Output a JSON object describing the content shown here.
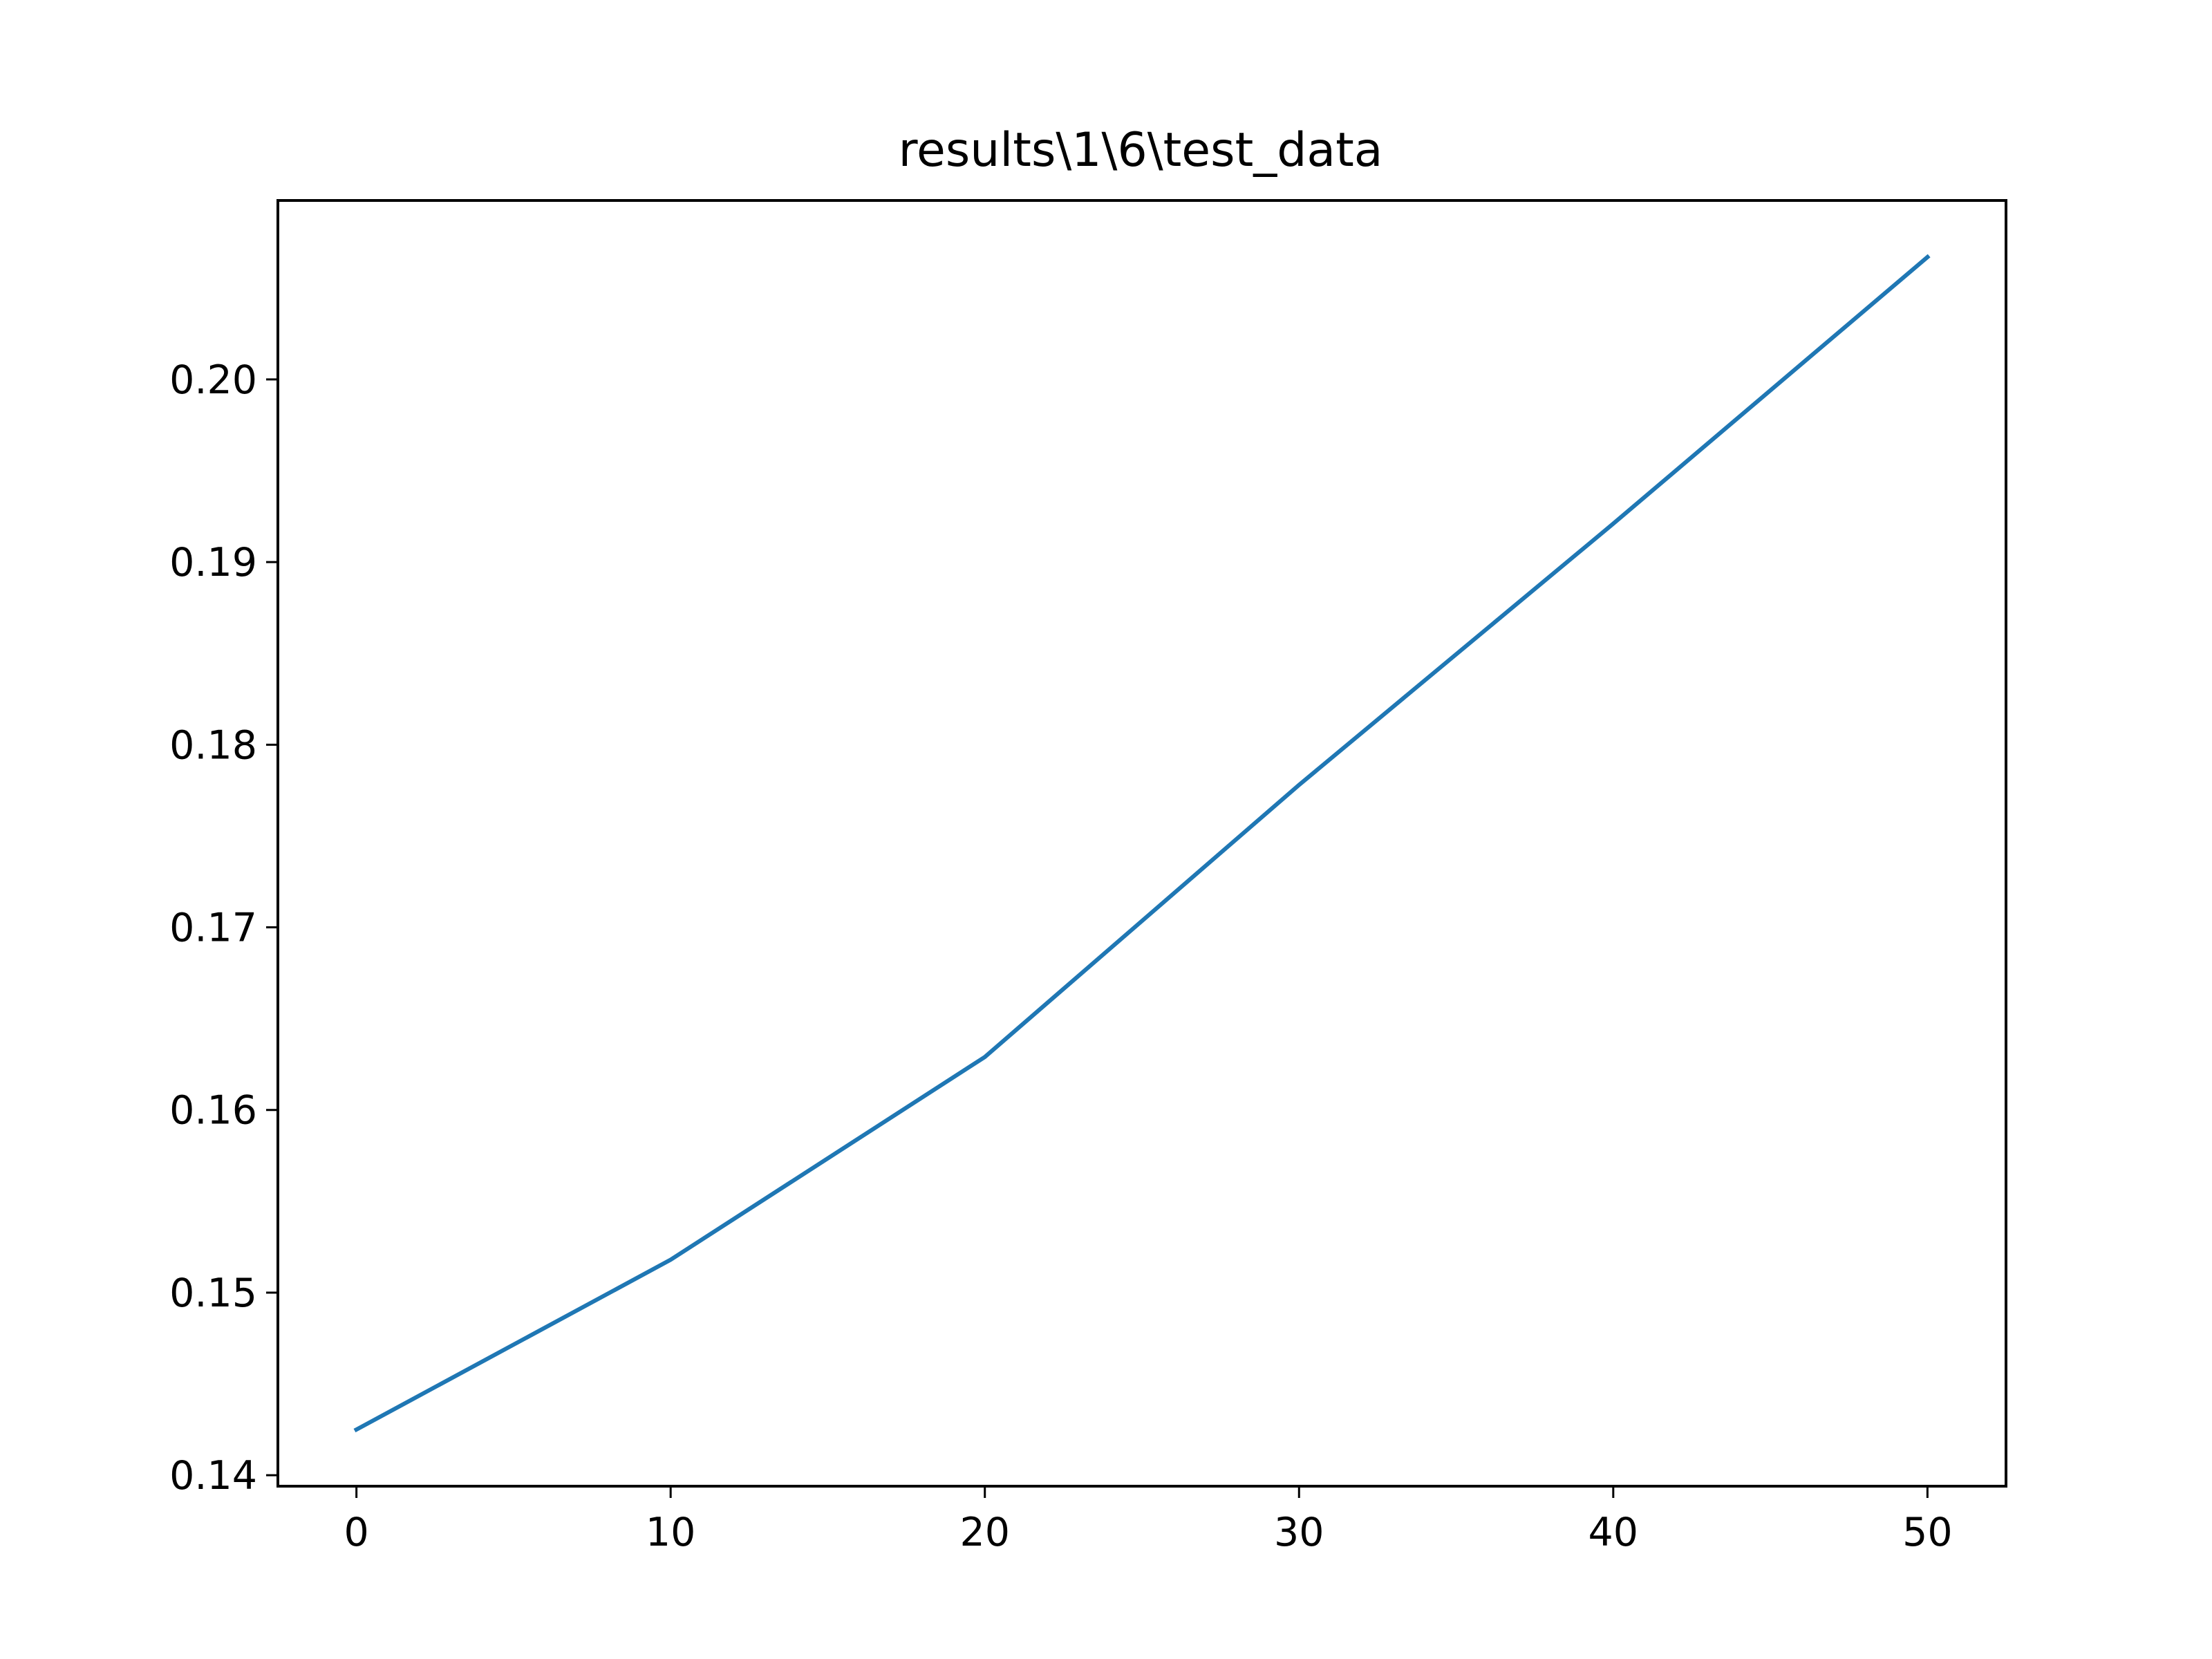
{
  "chart_data": {
    "type": "line",
    "title": "results\\1\\6\\test_data",
    "xlabel": "",
    "ylabel": "",
    "xlim": [
      -2.5,
      52.5
    ],
    "ylim": [
      0.1394,
      0.2098
    ],
    "x_ticks": [
      0,
      10,
      20,
      30,
      40,
      50
    ],
    "y_ticks": [
      0.14,
      0.15,
      0.16,
      0.17,
      0.18,
      0.19,
      0.2
    ],
    "x_tick_labels": [
      "0",
      "10",
      "20",
      "30",
      "40",
      "50"
    ],
    "y_tick_labels": [
      "0.14",
      "0.15",
      "0.16",
      "0.17",
      "0.18",
      "0.19",
      "0.20"
    ],
    "grid": false,
    "series": [
      {
        "color": "#1f77b4",
        "x": [
          0,
          10,
          20,
          30,
          40,
          50
        ],
        "y": [
          0.1425,
          0.1518,
          0.1629,
          0.1778,
          0.1921,
          0.2067
        ]
      }
    ]
  }
}
